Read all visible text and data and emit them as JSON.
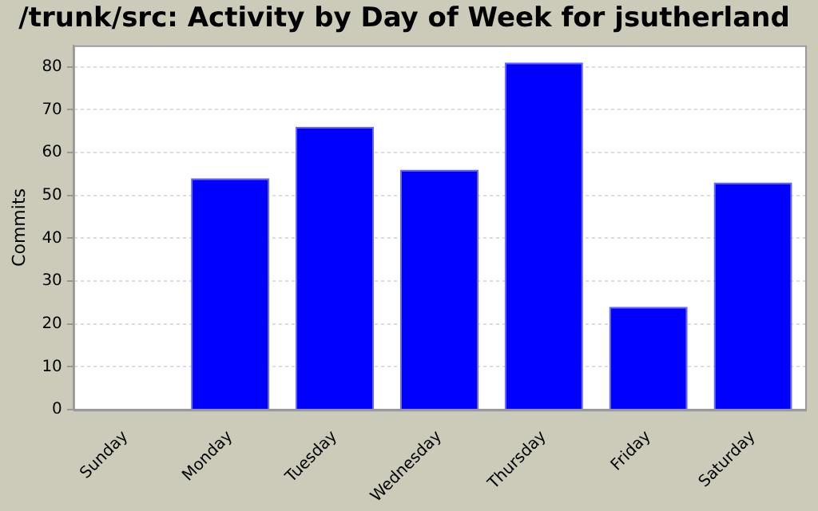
{
  "chart_data": {
    "type": "bar",
    "title": "/trunk/src: Activity by Day of Week for jsutherland",
    "ylabel": "Commits",
    "categories": [
      "Sunday",
      "Monday",
      "Tuesday",
      "Wednesday",
      "Thursday",
      "Friday",
      "Saturday"
    ],
    "values": [
      0,
      54,
      66,
      56,
      81,
      24,
      53
    ],
    "color": "#0000ff",
    "ylim": [
      0,
      85
    ],
    "yticks": [
      0,
      10,
      20,
      30,
      40,
      50,
      60,
      70,
      80
    ],
    "grid": "y"
  }
}
